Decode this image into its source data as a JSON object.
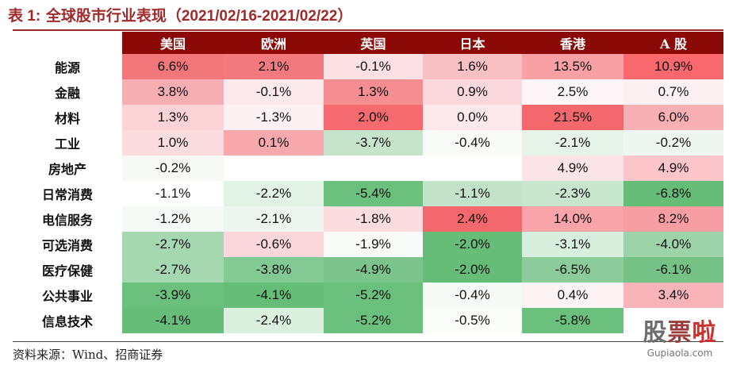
{
  "title_prefix": "表 1:",
  "title_text": "全球股市行业表现",
  "title_range": "（2021/02/16-2021/02/22）",
  "columns": [
    "美国",
    "欧洲",
    "英国",
    "日本",
    "香港",
    "A 股"
  ],
  "rows": [
    {
      "name": "能源",
      "cells": [
        "6.6%",
        "2.1%",
        "-0.1%",
        "1.6%",
        "13.5%",
        "10.9%"
      ],
      "colors": [
        "#f2777b",
        "#f27a7e",
        "#fde0e4",
        "#f9c0c4",
        "#f8a0a4",
        "#f8686d"
      ]
    },
    {
      "name": "金融",
      "cells": [
        "3.8%",
        "-0.1%",
        "1.3%",
        "0.9%",
        "2.5%",
        "0.7%"
      ],
      "colors": [
        "#f7aeb2",
        "#fce9ec",
        "#f58d91",
        "#fbd8dc",
        "#fdf5f7",
        "#fcf0f2"
      ]
    },
    {
      "name": "材料",
      "cells": [
        "1.3%",
        "-1.3%",
        "2.0%",
        "0.0%",
        "21.5%",
        "6.0%"
      ],
      "colors": [
        "#fbd3d7",
        "#fdf1f3",
        "#f46a6e",
        "#fde8eb",
        "#f3686c",
        "#f9b0b4"
      ]
    },
    {
      "name": "工业",
      "cells": [
        "1.0%",
        "0.1%",
        "-3.7%",
        "-0.4%",
        "-2.1%",
        "-0.2%"
      ],
      "colors": [
        "#fbdde0",
        "#f7a8ac",
        "#c5e4cb",
        "#f8fbf8",
        "#e6f3e8",
        "#eef7ef"
      ]
    },
    {
      "name": "房地产",
      "cells": [
        "-0.2%",
        "",
        "",
        "",
        "4.9%",
        "4.9%"
      ],
      "colors": [
        "#f6f9f6",
        "#ffffff",
        "#ffffff",
        "#ffffff",
        "#fbe4e7",
        "#fbc5c9"
      ]
    },
    {
      "name": "日常消费",
      "cells": [
        "-1.1%",
        "-2.2%",
        "-5.4%",
        "-1.1%",
        "-2.3%",
        "-6.8%"
      ],
      "colors": [
        "#ffffff",
        "#e2f2e5",
        "#6cc07e",
        "#c2e3c9",
        "#c8e6ce",
        "#66bd78"
      ]
    },
    {
      "name": "电信服务",
      "cells": [
        "-1.2%",
        "-2.1%",
        "-1.8%",
        "2.4%",
        "14.0%",
        "8.2%"
      ],
      "colors": [
        "#f6faf6",
        "#ecf6ee",
        "#fbdde0",
        "#f2686c",
        "#f8a4a8",
        "#f79ea2"
      ]
    },
    {
      "name": "可选消费",
      "cells": [
        "-2.7%",
        "-0.6%",
        "-1.9%",
        "-2.0%",
        "-3.1%",
        "-4.0%"
      ],
      "colors": [
        "#a5d7b1",
        "#fbd7db",
        "#f8fbf8",
        "#66bd78",
        "#d9efdd",
        "#9dd3a9"
      ]
    },
    {
      "name": "医疗保健",
      "cells": [
        "-2.7%",
        "-3.8%",
        "-4.9%",
        "-2.0%",
        "-6.5%",
        "-6.1%"
      ],
      "colors": [
        "#a5d7b1",
        "#83c994",
        "#7bc58c",
        "#66bd78",
        "#8bcc9a",
        "#74c286"
      ]
    },
    {
      "name": "公共事业",
      "cells": [
        "-3.9%",
        "-4.1%",
        "-5.2%",
        "-0.4%",
        "0.4%",
        "3.4%"
      ],
      "colors": [
        "#6cc07e",
        "#66bd78",
        "#6cc07e",
        "#f6faf6",
        "#fdf3f5",
        "#f8b4b8"
      ]
    },
    {
      "name": "信息技术",
      "cells": [
        "-4.1%",
        "-2.4%",
        "-5.2%",
        "-0.5%",
        "-5.8%",
        ""
      ],
      "colors": [
        "#66bd78",
        "#dcf0e0",
        "#6cc07e",
        "#fafcfa",
        "#6cc07e",
        "#ffffff"
      ]
    }
  ],
  "source": "资料来源：Wind、招商证券",
  "watermark": {
    "logo_1": "股",
    "logo_2": "票",
    "logo_3": "啦",
    "url": "Gupiaola.com"
  }
}
